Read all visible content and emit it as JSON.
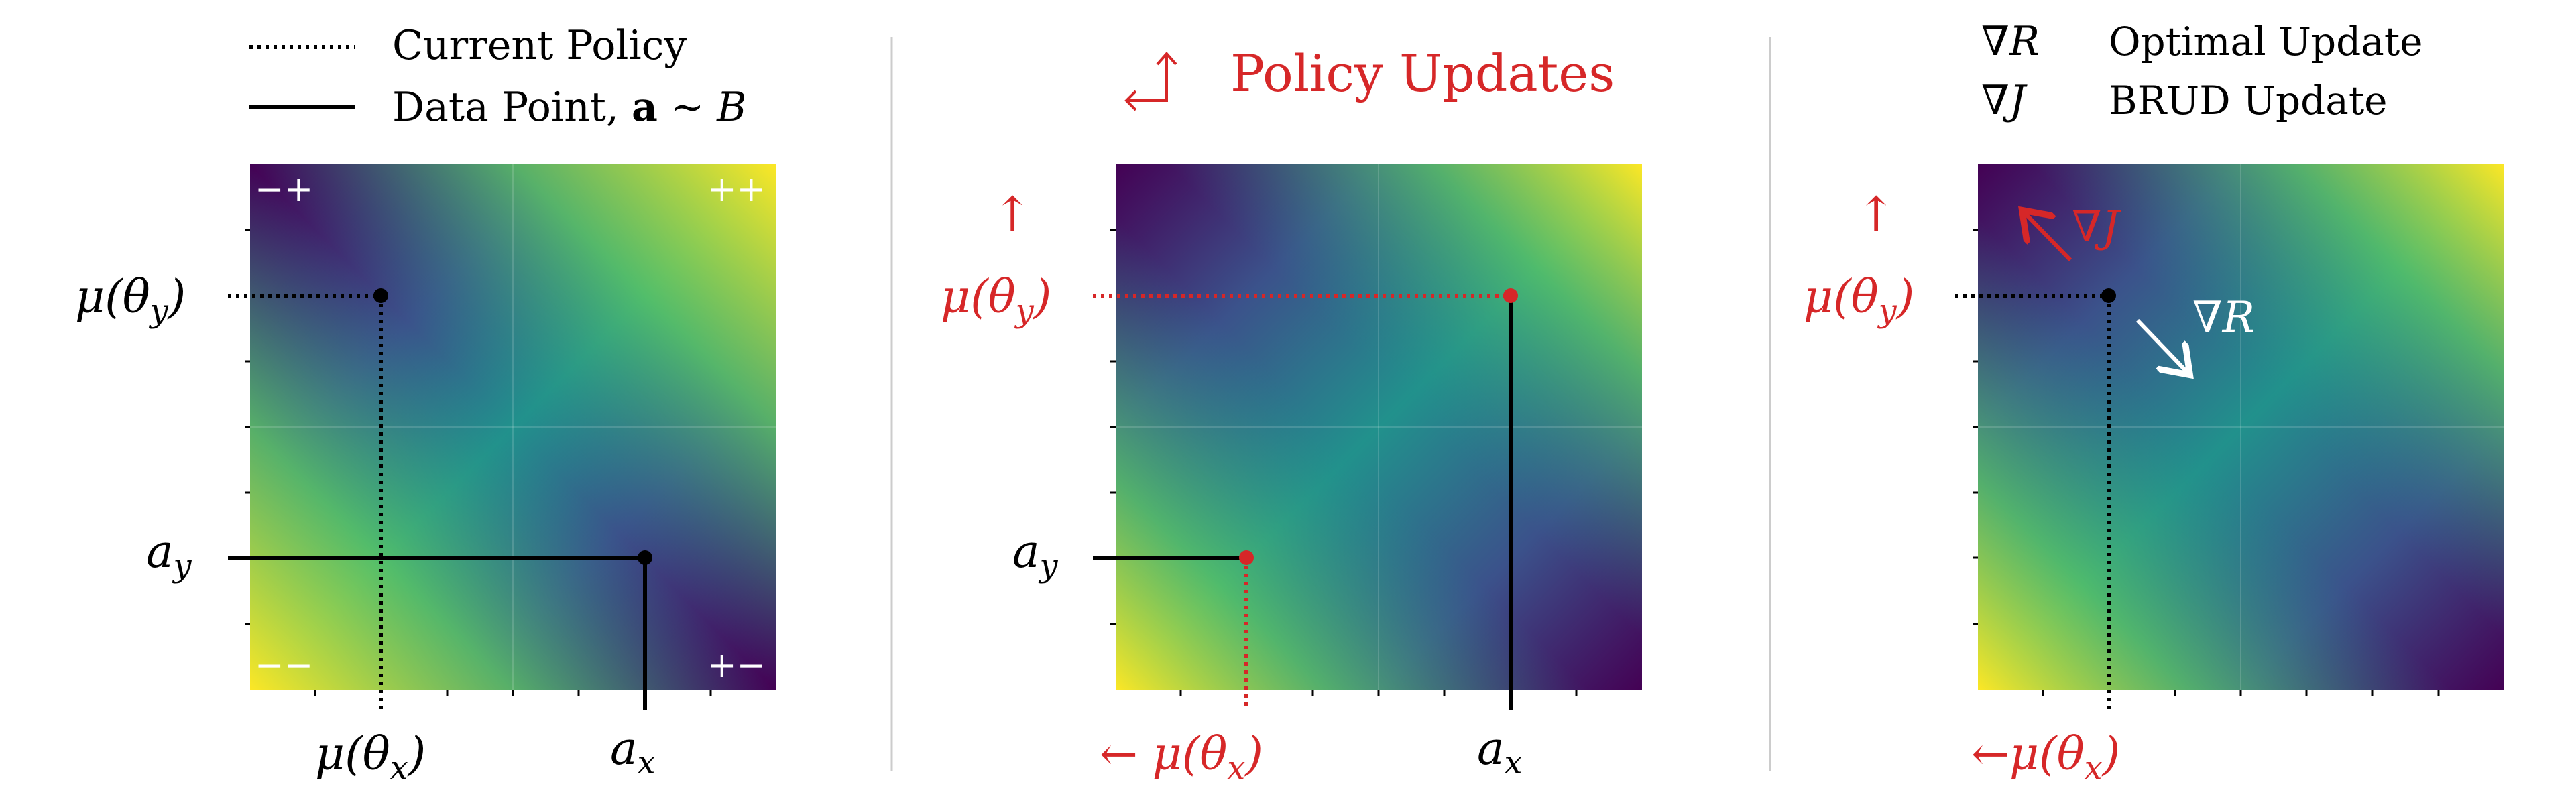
{
  "legend_left": {
    "current_policy": "Current Policy",
    "data_point": "Data Point, ",
    "data_point_math": {
      "a": "a",
      "sim": " ∼ ",
      "B": "B"
    }
  },
  "legend_right": {
    "optimal_symbol": "∇R",
    "optimal_label": "Optimal Update",
    "brud_symbol": "∇J",
    "brud_label": "BRUD Update"
  },
  "middle_title": {
    "icon": "return-arrow-icon",
    "text": "Policy Updates"
  },
  "panel1": {
    "quadrant_labels": {
      "top_left": "−+",
      "top_right": "++",
      "bottom_left": "−−",
      "bottom_right": "+−"
    },
    "y_labels": {
      "mu_theta_y": {
        "main": "μ(θ",
        "sub": "y",
        "close": ")"
      },
      "a_y": {
        "main": "a",
        "sub": "y"
      }
    },
    "x_labels": {
      "mu_theta_x": {
        "main": "μ(θ",
        "sub": "x",
        "close": ")"
      },
      "a_x": {
        "main": "a",
        "sub": "x"
      }
    }
  },
  "panel2": {
    "up_arrow": "↑",
    "left_arrow": "← ",
    "y_labels": {
      "mu_theta_y": {
        "main": "μ(θ",
        "sub": "y",
        "close": ")"
      },
      "a_y": {
        "main": "a",
        "sub": "y"
      }
    },
    "x_labels": {
      "mu_theta_x": {
        "main": "μ(θ",
        "sub": "x",
        "close": ")"
      },
      "a_x": {
        "main": "a",
        "sub": "x"
      }
    }
  },
  "panel3": {
    "up_arrow": "↑",
    "left_arrow": "←",
    "grad_J": "∇J",
    "grad_R": "∇R",
    "y_labels": {
      "mu_theta_y": {
        "main": "μ(θ",
        "sub": "y",
        "close": ")"
      }
    },
    "x_labels": {
      "mu_theta_x": {
        "main": "μ(θ",
        "sub": "x",
        "close": ")"
      }
    }
  },
  "colors": {
    "accent_red": "#d62728",
    "viridis": [
      "#440154",
      "#3b528b",
      "#21918c",
      "#5ec962",
      "#fde725"
    ],
    "annotation_white": "#ffffff",
    "line_black": "#000000"
  }
}
